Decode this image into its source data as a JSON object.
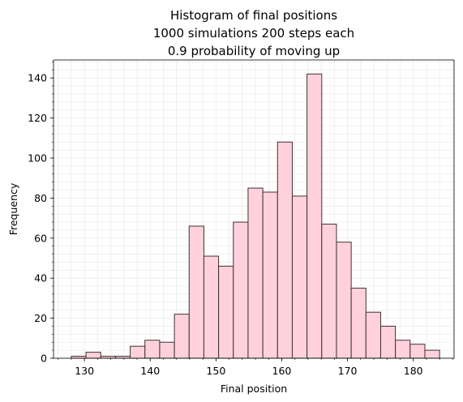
{
  "chart_data": {
    "type": "bar",
    "title_lines": [
      "Histogram of final positions",
      "1000 simulations 200 steps each",
      "0.9 probability of moving up"
    ],
    "xlabel": "Final position",
    "ylabel": "Frequency",
    "xlim": [
      125.3,
      186.2
    ],
    "ylim": [
      0,
      149
    ],
    "xticks": [
      "130",
      "140",
      "150",
      "160",
      "170",
      "180"
    ],
    "yticks": [
      "0",
      "20",
      "40",
      "60",
      "80",
      "100",
      "120",
      "140"
    ],
    "grid": true,
    "bar_color": "#ffd1dc",
    "edge_color": "#3d3333",
    "bin_edges": [
      128,
      130.24,
      132.48,
      134.72,
      136.96,
      139.2,
      141.44,
      143.68,
      145.92,
      148.16,
      150.4,
      152.64,
      154.88,
      157.12,
      159.36,
      161.6,
      163.84,
      166.08,
      168.32,
      170.56,
      172.8,
      175.04,
      177.28,
      179.52,
      181.76,
      184
    ],
    "values": [
      1,
      3,
      1,
      1,
      6,
      9,
      8,
      22,
      66,
      51,
      46,
      68,
      85,
      83,
      108,
      81,
      142,
      67,
      58,
      35,
      23,
      16,
      9,
      7,
      4
    ]
  }
}
